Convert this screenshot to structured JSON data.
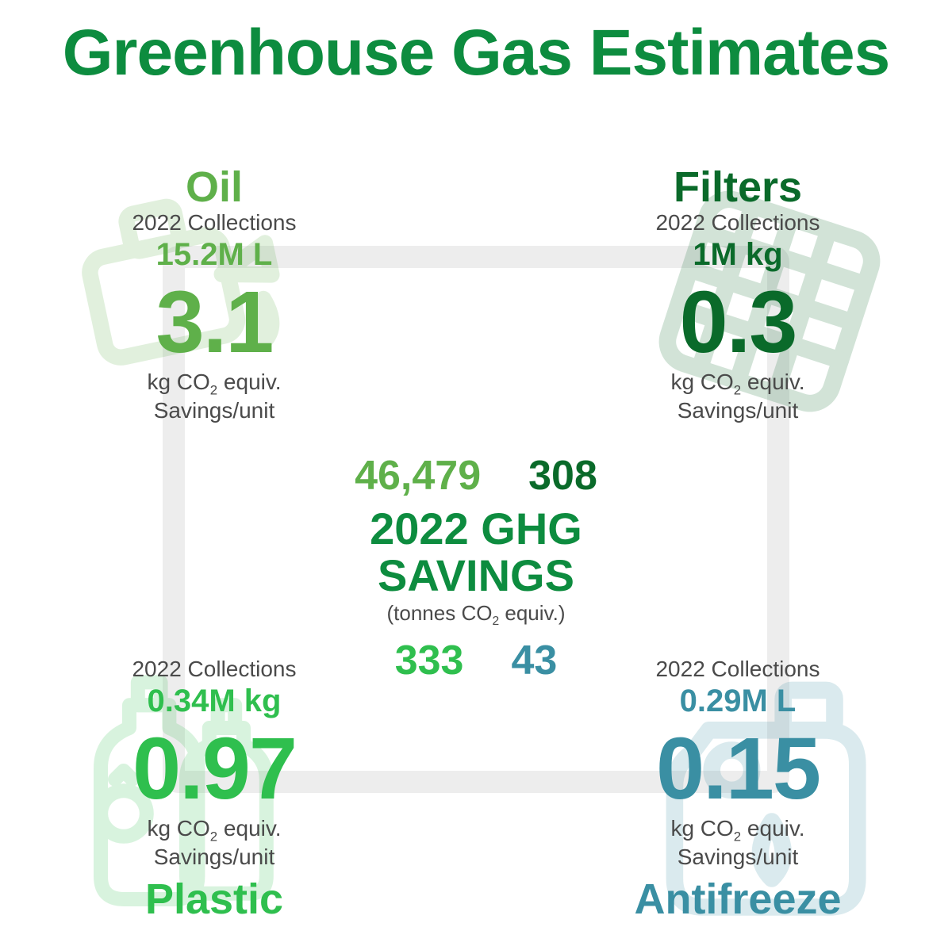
{
  "title": "Greenhouse Gas Estimates",
  "title_color": "#0d8c3f",
  "connector_color": "#ededed",
  "center": {
    "line1": "2022 GHG",
    "line2": "SAVINGS",
    "sub": "(tonnes CO₂ equiv.)",
    "color": "#0d8c3f",
    "top_left_value": "46,479",
    "top_right_value": "308",
    "bottom_left_value": "333",
    "bottom_right_value": "43"
  },
  "quadrants": {
    "oil": {
      "title": "Oil",
      "title_position": "top",
      "sub": "2022 Collections",
      "collect": "15.2M L",
      "big": "3.1",
      "unit1": "kg CO₂ equiv.",
      "unit2": "Savings/unit",
      "color": "#5fb04a",
      "icon_color": "#d7ecd1"
    },
    "filters": {
      "title": "Filters",
      "title_position": "top",
      "sub": "2022 Collections",
      "collect": "1M kg",
      "big": "0.3",
      "unit1": "kg CO₂ equiv.",
      "unit2": "Savings/unit",
      "color": "#0a6a2a",
      "icon_color": "#dfe8df"
    },
    "plastic": {
      "title": "Plastic",
      "title_position": "bottom",
      "sub": "2022 Collections",
      "collect": "0.34M kg",
      "big": "0.97",
      "unit1": "kg CO₂ equiv.",
      "unit2": "Savings/unit",
      "color": "#2fbf4e",
      "icon_color": "#d9f2de"
    },
    "antifreeze": {
      "title": "Antifreeze",
      "title_position": "bottom",
      "sub": "2022 Collections",
      "collect": "0.29M L",
      "big": "0.15",
      "unit1": "kg CO₂ equiv.",
      "unit2": "Savings/unit",
      "color": "#3a8fa3",
      "icon_color": "#dbe9ed"
    }
  },
  "layout": {
    "title_fontsize": 82,
    "quad_title_fontsize": 54,
    "quad_big_fontsize": 110,
    "center_value_fontsize": 52,
    "center_title_fontsize": 56
  }
}
